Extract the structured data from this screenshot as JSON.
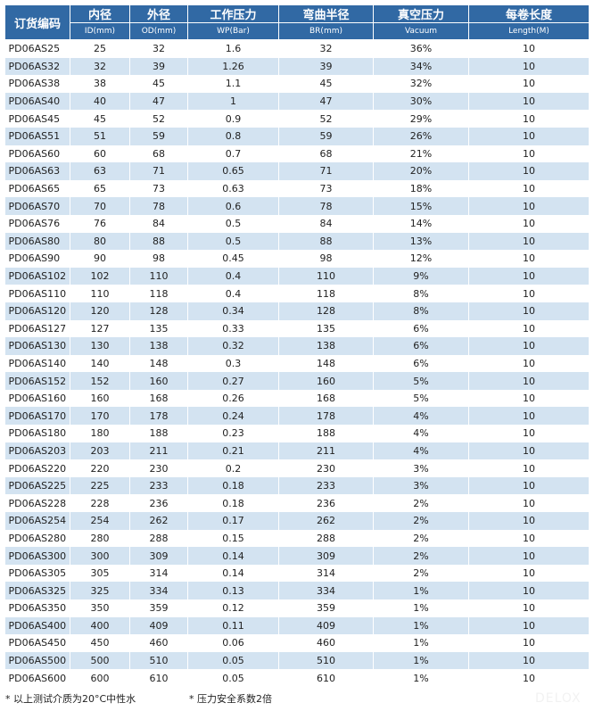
{
  "header": {
    "code": "订货编码",
    "cols": [
      {
        "cn": "内径",
        "en": "ID(mm)"
      },
      {
        "cn": "外径",
        "en": "OD(mm)"
      },
      {
        "cn": "工作压力",
        "en": "WP(Bar)"
      },
      {
        "cn": "弯曲半径",
        "en": "BR(mm)"
      },
      {
        "cn": "真空压力",
        "en": "Vacuum"
      },
      {
        "cn": "每卷长度",
        "en": "Length(M)"
      }
    ]
  },
  "rows": [
    [
      "PD06AS25",
      "25",
      "32",
      "1.6",
      "32",
      "36%",
      "10"
    ],
    [
      "PD06AS32",
      "32",
      "39",
      "1.26",
      "39",
      "34%",
      "10"
    ],
    [
      "PD06AS38",
      "38",
      "45",
      "1.1",
      "45",
      "32%",
      "10"
    ],
    [
      "PD06AS40",
      "40",
      "47",
      "1",
      "47",
      "30%",
      "10"
    ],
    [
      "PD06AS45",
      "45",
      "52",
      "0.9",
      "52",
      "29%",
      "10"
    ],
    [
      "PD06AS51",
      "51",
      "59",
      "0.8",
      "59",
      "26%",
      "10"
    ],
    [
      "PD06AS60",
      "60",
      "68",
      "0.7",
      "68",
      "21%",
      "10"
    ],
    [
      "PD06AS63",
      "63",
      "71",
      "0.65",
      "71",
      "20%",
      "10"
    ],
    [
      "PD06AS65",
      "65",
      "73",
      "0.63",
      "73",
      "18%",
      "10"
    ],
    [
      "PD06AS70",
      "70",
      "78",
      "0.6",
      "78",
      "15%",
      "10"
    ],
    [
      "PD06AS76",
      "76",
      "84",
      "0.5",
      "84",
      "14%",
      "10"
    ],
    [
      "PD06AS80",
      "80",
      "88",
      "0.5",
      "88",
      "13%",
      "10"
    ],
    [
      "PD06AS90",
      "90",
      "98",
      "0.45",
      "98",
      "12%",
      "10"
    ],
    [
      "PD06AS102",
      "102",
      "110",
      "0.4",
      "110",
      "9%",
      "10"
    ],
    [
      "PD06AS110",
      "110",
      "118",
      "0.4",
      "118",
      "8%",
      "10"
    ],
    [
      "PD06AS120",
      "120",
      "128",
      "0.34",
      "128",
      "8%",
      "10"
    ],
    [
      "PD06AS127",
      "127",
      "135",
      "0.33",
      "135",
      "6%",
      "10"
    ],
    [
      "PD06AS130",
      "130",
      "138",
      "0.32",
      "138",
      "6%",
      "10"
    ],
    [
      "PD06AS140",
      "140",
      "148",
      "0.3",
      "148",
      "6%",
      "10"
    ],
    [
      "PD06AS152",
      "152",
      "160",
      "0.27",
      "160",
      "5%",
      "10"
    ],
    [
      "PD06AS160",
      "160",
      "168",
      "0.26",
      "168",
      "5%",
      "10"
    ],
    [
      "PD06AS170",
      "170",
      "178",
      "0.24",
      "178",
      "4%",
      "10"
    ],
    [
      "PD06AS180",
      "180",
      "188",
      "0.23",
      "188",
      "4%",
      "10"
    ],
    [
      "PD06AS203",
      "203",
      "211",
      "0.21",
      "211",
      "4%",
      "10"
    ],
    [
      "PD06AS220",
      "220",
      "230",
      "0.2",
      "230",
      "3%",
      "10"
    ],
    [
      "PD06AS225",
      "225",
      "233",
      "0.18",
      "233",
      "3%",
      "10"
    ],
    [
      "PD06AS228",
      "228",
      "236",
      "0.18",
      "236",
      "2%",
      "10"
    ],
    [
      "PD06AS254",
      "254",
      "262",
      "0.17",
      "262",
      "2%",
      "10"
    ],
    [
      "PD06AS280",
      "280",
      "288",
      "0.15",
      "288",
      "2%",
      "10"
    ],
    [
      "PD06AS300",
      "300",
      "309",
      "0.14",
      "309",
      "2%",
      "10"
    ],
    [
      "PD06AS305",
      "305",
      "314",
      "0.14",
      "314",
      "2%",
      "10"
    ],
    [
      "PD06AS325",
      "325",
      "334",
      "0.13",
      "334",
      "1%",
      "10"
    ],
    [
      "PD06AS350",
      "350",
      "359",
      "0.12",
      "359",
      "1%",
      "10"
    ],
    [
      "PD06AS400",
      "400",
      "409",
      "0.11",
      "409",
      "1%",
      "10"
    ],
    [
      "PD06AS450",
      "450",
      "460",
      "0.06",
      "460",
      "1%",
      "10"
    ],
    [
      "PD06AS500",
      "500",
      "510",
      "0.05",
      "510",
      "1%",
      "10"
    ],
    [
      "PD06AS600",
      "600",
      "610",
      "0.05",
      "610",
      "1%",
      "10"
    ]
  ],
  "notes": [
    "* 以上测试介质为20°C中性水",
    "* 压力安全系数2倍"
  ],
  "watermark": "DELOX",
  "colors": {
    "header": "#3169a4",
    "alt_row": "#d3e3f1"
  }
}
